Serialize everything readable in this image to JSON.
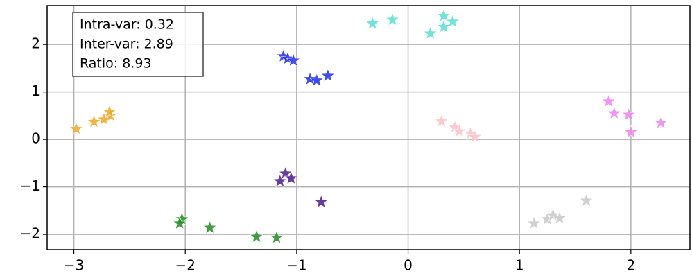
{
  "chart_data": {
    "type": "scatter",
    "marker": "star",
    "grid": true,
    "xlim": [
      -3.24,
      2.53
    ],
    "ylim": [
      -2.32,
      2.82
    ],
    "xticks": [
      {
        "value": -3,
        "label": "−3"
      },
      {
        "value": -2,
        "label": "−2"
      },
      {
        "value": -1,
        "label": "−1"
      },
      0,
      1,
      2
    ],
    "yticks": [
      {
        "value": -2,
        "label": "−2"
      },
      {
        "value": -1,
        "label": "−1"
      },
      0,
      1,
      2
    ],
    "annotation": [
      "Intra-var: 0.32",
      "Inter-var: 2.89",
      "Ratio: 8.93"
    ],
    "series": [
      {
        "color": "#f5a623",
        "x": [
          -2.98,
          -2.82,
          -2.73,
          -2.67,
          -2.68
        ],
        "y": [
          0.22,
          0.37,
          0.42,
          0.5,
          0.58
        ]
      },
      {
        "color": "#1f2cf0",
        "x": [
          -1.12,
          -1.08,
          -1.03,
          -0.88,
          -0.82,
          -0.72
        ],
        "y": [
          1.75,
          1.7,
          1.66,
          1.27,
          1.24,
          1.34
        ]
      },
      {
        "color": "#56e0d0",
        "x": [
          -0.32,
          -0.14,
          0.2,
          0.32,
          0.32,
          0.4
        ],
        "y": [
          2.44,
          2.52,
          2.23,
          2.37,
          2.6,
          2.48
        ]
      },
      {
        "color": "#ffc0cb",
        "x": [
          0.3,
          0.42,
          0.46,
          0.56,
          0.6
        ],
        "y": [
          0.38,
          0.25,
          0.17,
          0.12,
          0.05
        ]
      },
      {
        "color": "#ee82ee",
        "x": [
          1.8,
          1.85,
          1.98,
          2.0,
          2.27
        ],
        "y": [
          0.8,
          0.55,
          0.52,
          0.15,
          0.35
        ]
      },
      {
        "color": "#4b1a90",
        "x": [
          -1.1,
          -1.15,
          -1.05,
          -0.78
        ],
        "y": [
          -0.72,
          -0.88,
          -0.82,
          -1.32
        ]
      },
      {
        "color": "#1e8c1e",
        "x": [
          -2.03,
          -2.05,
          -1.78,
          -1.36,
          -1.18
        ],
        "y": [
          -1.68,
          -1.77,
          -1.86,
          -2.05,
          -2.07
        ]
      },
      {
        "color": "#c8c8c8",
        "x": [
          1.13,
          1.25,
          1.3,
          1.36,
          1.6
        ],
        "y": [
          -1.77,
          -1.68,
          -1.6,
          -1.66,
          -1.29
        ]
      }
    ]
  }
}
